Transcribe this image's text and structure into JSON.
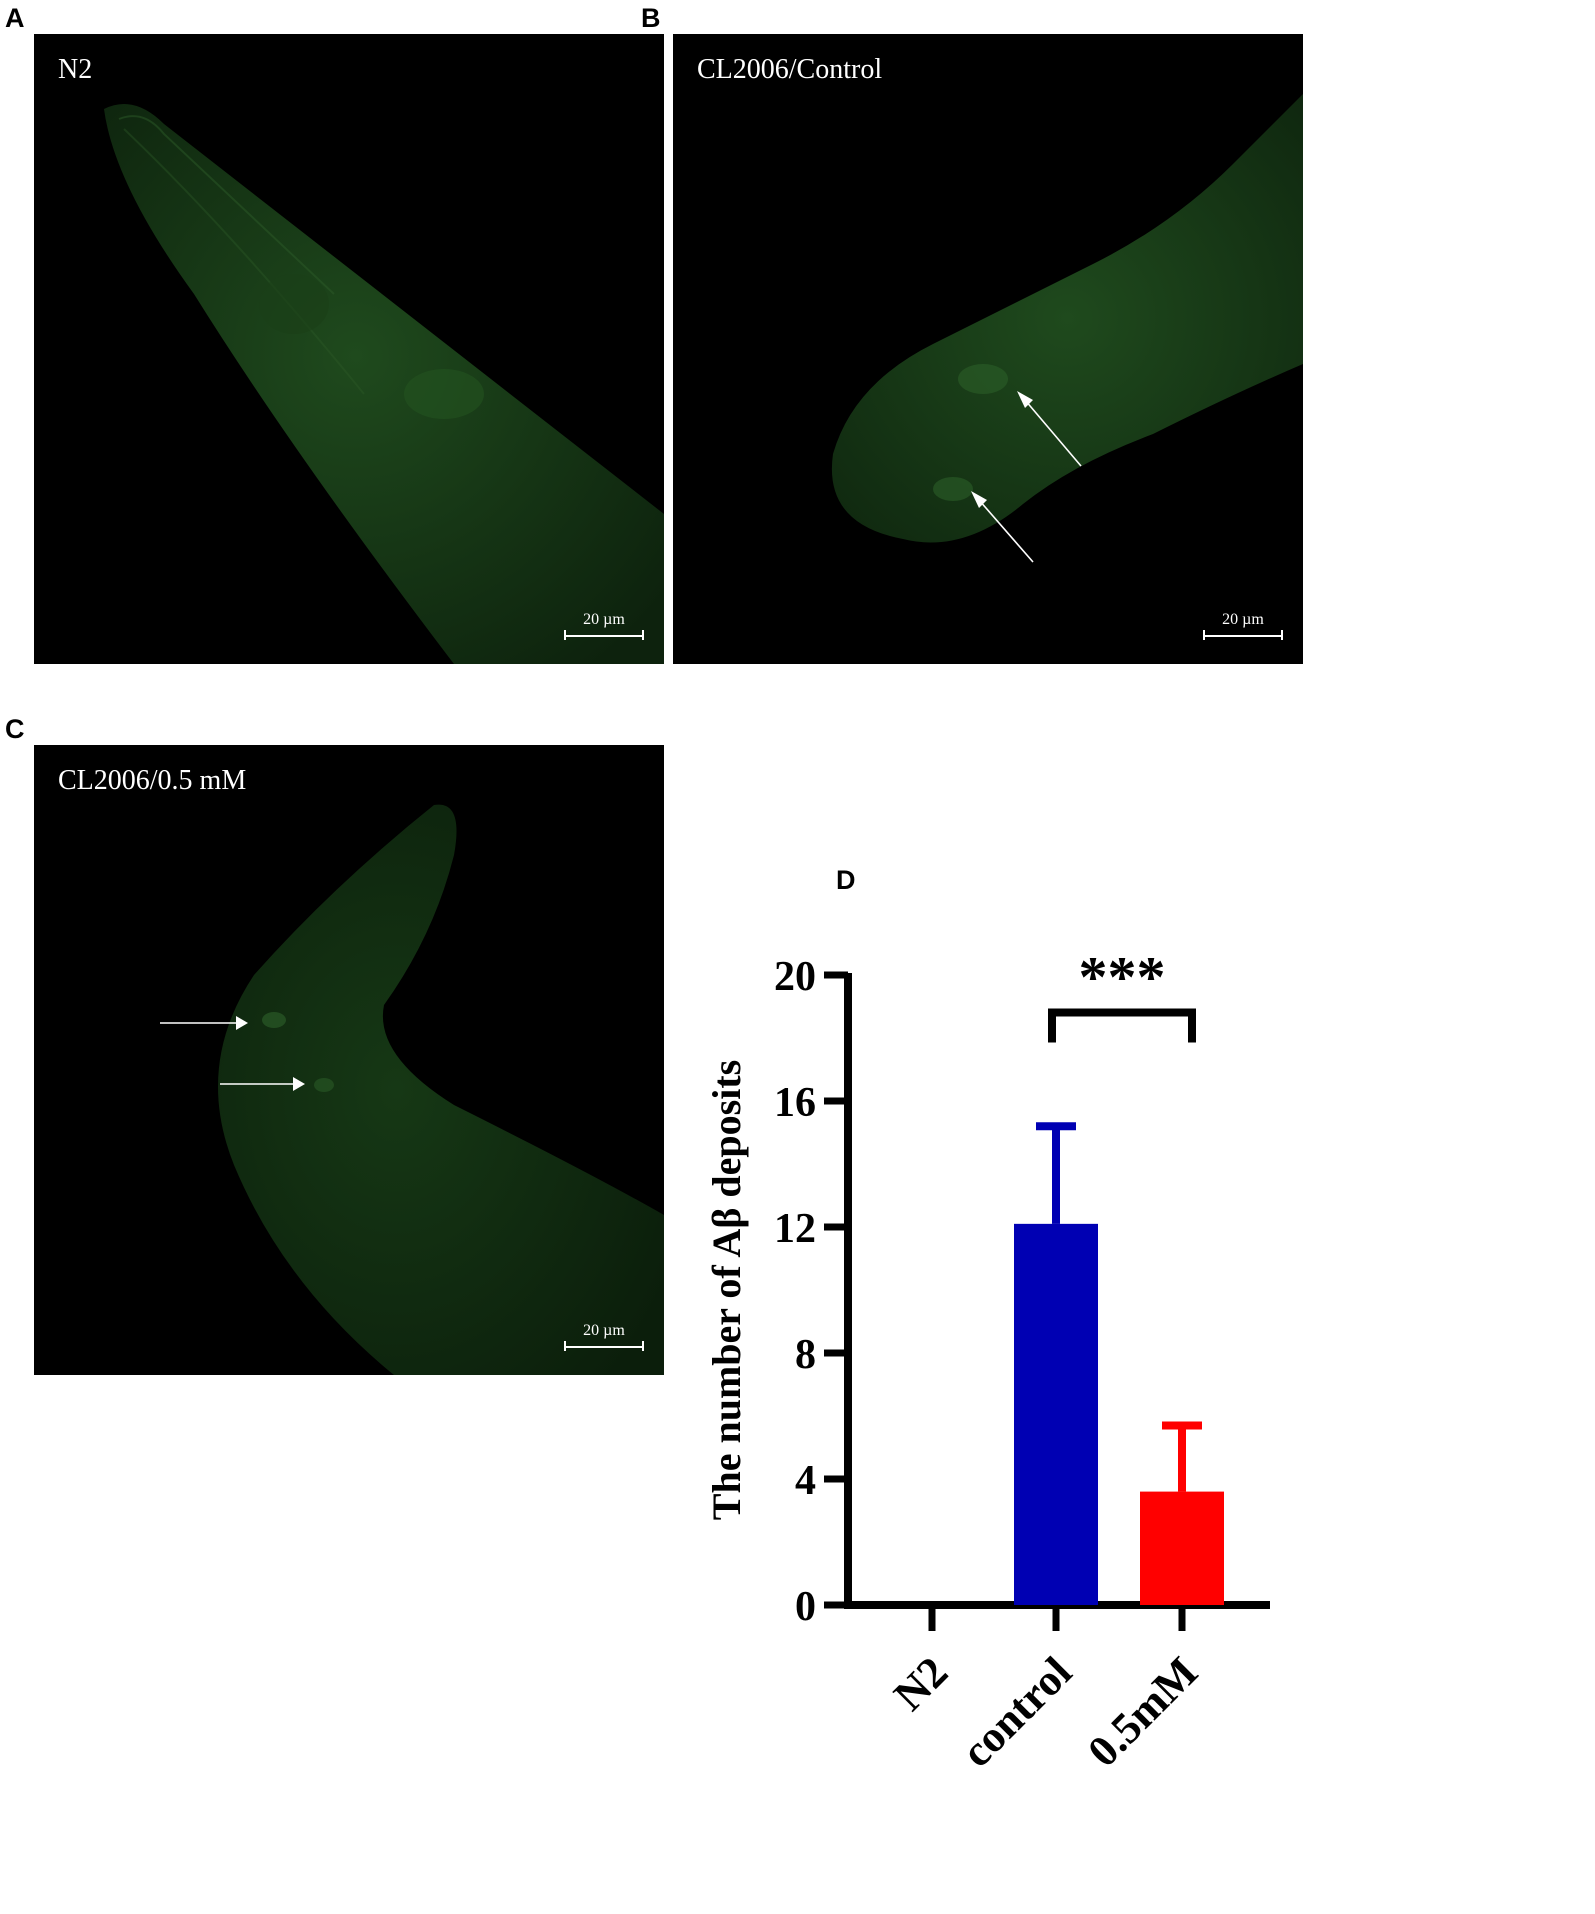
{
  "panels": {
    "a": {
      "letter": "A",
      "label": "N2",
      "scale": "20 µm"
    },
    "b": {
      "letter": "B",
      "label": "CL2006/Control",
      "scale": "20 µm"
    },
    "c": {
      "letter": "C",
      "label": "CL2006/0.5 mM",
      "scale": "20 µm"
    },
    "d": {
      "letter": "D"
    }
  },
  "chart_data": {
    "type": "bar",
    "categories": [
      "N2",
      "control",
      "0.5mM"
    ],
    "values": [
      0,
      12.1,
      3.6
    ],
    "errors": [
      0,
      3.1,
      2.1
    ],
    "bar_colors": [
      "#0000b3",
      "#0000b3",
      "#ff0000"
    ],
    "ylabel": "The number of Aβ deposits",
    "xlabel": "",
    "ylim": [
      0,
      20
    ],
    "yticks": [
      0,
      4,
      8,
      12,
      16,
      20
    ],
    "significance": {
      "from": "control",
      "to": "0.5mM",
      "label": "***"
    }
  }
}
